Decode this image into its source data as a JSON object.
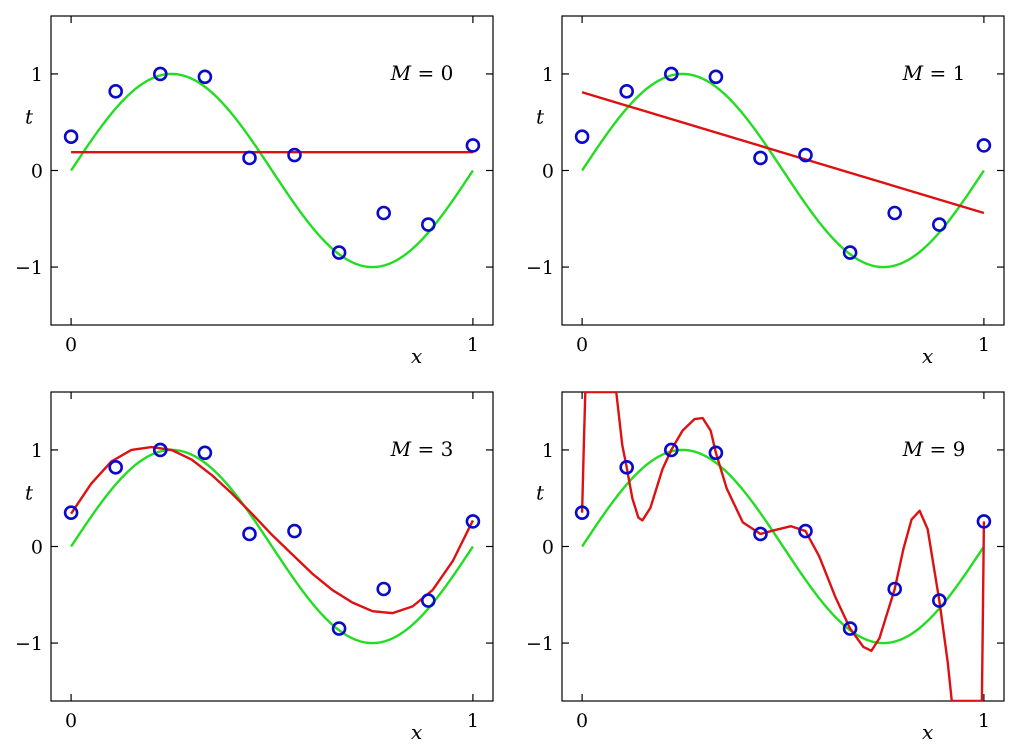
{
  "colors": {
    "truth_curve": "#22dd22",
    "fit_curve": "#dd1111",
    "points": "#0a0acc"
  },
  "chart_data": [
    {
      "type": "line",
      "annotation": {
        "var": "M",
        "rest": " = 0"
      },
      "xlabel": "x",
      "ylabel": "t",
      "xlim": [
        -0.05,
        1.05
      ],
      "ylim": [
        -1.6,
        1.6
      ],
      "xticks": [
        "0",
        "1"
      ],
      "yticks": [
        "−1",
        "0",
        "1"
      ],
      "true_function": "sin(2πx)",
      "points": [
        {
          "x": 0.0,
          "y": 0.35
        },
        {
          "x": 0.111,
          "y": 0.82
        },
        {
          "x": 0.222,
          "y": 1.0
        },
        {
          "x": 0.333,
          "y": 0.97
        },
        {
          "x": 0.444,
          "y": 0.13
        },
        {
          "x": 0.556,
          "y": 0.16
        },
        {
          "x": 0.667,
          "y": -0.85
        },
        {
          "x": 0.778,
          "y": -0.44
        },
        {
          "x": 0.889,
          "y": -0.56
        },
        {
          "x": 1.0,
          "y": 0.26
        }
      ],
      "fit": [
        [
          0,
          0.19
        ],
        [
          1,
          0.19
        ]
      ]
    },
    {
      "type": "line",
      "annotation": {
        "var": "M",
        "rest": " = 1"
      },
      "xlabel": "x",
      "ylabel": "t",
      "xlim": [
        -0.05,
        1.05
      ],
      "ylim": [
        -1.6,
        1.6
      ],
      "xticks": [
        "0",
        "1"
      ],
      "yticks": [
        "−1",
        "0",
        "1"
      ],
      "true_function": "sin(2πx)",
      "points": [
        {
          "x": 0.0,
          "y": 0.35
        },
        {
          "x": 0.111,
          "y": 0.82
        },
        {
          "x": 0.222,
          "y": 1.0
        },
        {
          "x": 0.333,
          "y": 0.97
        },
        {
          "x": 0.444,
          "y": 0.13
        },
        {
          "x": 0.556,
          "y": 0.16
        },
        {
          "x": 0.667,
          "y": -0.85
        },
        {
          "x": 0.778,
          "y": -0.44
        },
        {
          "x": 0.889,
          "y": -0.56
        },
        {
          "x": 1.0,
          "y": 0.26
        }
      ],
      "fit": [
        [
          0,
          0.81
        ],
        [
          1,
          -0.44
        ]
      ]
    },
    {
      "type": "line",
      "annotation": {
        "var": "M",
        "rest": " = 3"
      },
      "xlabel": "x",
      "ylabel": "t",
      "xlim": [
        -0.05,
        1.05
      ],
      "ylim": [
        -1.6,
        1.6
      ],
      "xticks": [
        "0",
        "1"
      ],
      "yticks": [
        "−1",
        "0",
        "1"
      ],
      "true_function": "sin(2πx)",
      "points": [
        {
          "x": 0.0,
          "y": 0.35
        },
        {
          "x": 0.111,
          "y": 0.82
        },
        {
          "x": 0.222,
          "y": 1.0
        },
        {
          "x": 0.333,
          "y": 0.97
        },
        {
          "x": 0.444,
          "y": 0.13
        },
        {
          "x": 0.556,
          "y": 0.16
        },
        {
          "x": 0.667,
          "y": -0.85
        },
        {
          "x": 0.778,
          "y": -0.44
        },
        {
          "x": 0.889,
          "y": -0.56
        },
        {
          "x": 1.0,
          "y": 0.26
        }
      ],
      "fit": [
        [
          0,
          0.34
        ],
        [
          0.05,
          0.65
        ],
        [
          0.1,
          0.88
        ],
        [
          0.15,
          1.0
        ],
        [
          0.2,
          1.03
        ],
        [
          0.25,
          1.0
        ],
        [
          0.3,
          0.9
        ],
        [
          0.35,
          0.74
        ],
        [
          0.4,
          0.55
        ],
        [
          0.45,
          0.34
        ],
        [
          0.5,
          0.12
        ],
        [
          0.55,
          -0.08
        ],
        [
          0.6,
          -0.28
        ],
        [
          0.65,
          -0.45
        ],
        [
          0.7,
          -0.58
        ],
        [
          0.75,
          -0.67
        ],
        [
          0.8,
          -0.69
        ],
        [
          0.85,
          -0.62
        ],
        [
          0.9,
          -0.45
        ],
        [
          0.95,
          -0.15
        ],
        [
          1.0,
          0.27
        ]
      ]
    },
    {
      "type": "line",
      "annotation": {
        "var": "M",
        "rest": " = 9"
      },
      "xlabel": "x",
      "ylabel": "t",
      "xlim": [
        -0.05,
        1.05
      ],
      "ylim": [
        -1.6,
        1.6
      ],
      "xticks": [
        "0",
        "1"
      ],
      "yticks": [
        "−1",
        "0",
        "1"
      ],
      "true_function": "sin(2πx)",
      "points": [
        {
          "x": 0.0,
          "y": 0.35
        },
        {
          "x": 0.111,
          "y": 0.82
        },
        {
          "x": 0.222,
          "y": 1.0
        },
        {
          "x": 0.333,
          "y": 0.97
        },
        {
          "x": 0.444,
          "y": 0.13
        },
        {
          "x": 0.556,
          "y": 0.16
        },
        {
          "x": 0.667,
          "y": -0.85
        },
        {
          "x": 0.778,
          "y": -0.44
        },
        {
          "x": 0.889,
          "y": -0.56
        },
        {
          "x": 1.0,
          "y": 0.26
        }
      ],
      "fit": [
        [
          0.0,
          0.35
        ],
        [
          0.004,
          1.0
        ],
        [
          0.008,
          1.6
        ],
        [
          0.085,
          1.6
        ],
        [
          0.1,
          1.05
        ],
        [
          0.111,
          0.82
        ],
        [
          0.125,
          0.5
        ],
        [
          0.14,
          0.3
        ],
        [
          0.15,
          0.27
        ],
        [
          0.17,
          0.4
        ],
        [
          0.2,
          0.8
        ],
        [
          0.222,
          1.0
        ],
        [
          0.25,
          1.2
        ],
        [
          0.28,
          1.32
        ],
        [
          0.3,
          1.33
        ],
        [
          0.32,
          1.2
        ],
        [
          0.333,
          0.97
        ],
        [
          0.36,
          0.6
        ],
        [
          0.4,
          0.25
        ],
        [
          0.444,
          0.13
        ],
        [
          0.48,
          0.17
        ],
        [
          0.52,
          0.21
        ],
        [
          0.556,
          0.16
        ],
        [
          0.59,
          -0.1
        ],
        [
          0.63,
          -0.52
        ],
        [
          0.667,
          -0.85
        ],
        [
          0.7,
          -1.04
        ],
        [
          0.72,
          -1.08
        ],
        [
          0.74,
          -0.95
        ],
        [
          0.778,
          -0.44
        ],
        [
          0.8,
          -0.02
        ],
        [
          0.82,
          0.28
        ],
        [
          0.84,
          0.37
        ],
        [
          0.86,
          0.18
        ],
        [
          0.889,
          -0.56
        ],
        [
          0.91,
          -1.2
        ],
        [
          0.92,
          -1.6
        ],
        [
          0.995,
          -1.6
        ],
        [
          0.998,
          -0.5
        ],
        [
          1.0,
          0.26
        ]
      ]
    }
  ]
}
